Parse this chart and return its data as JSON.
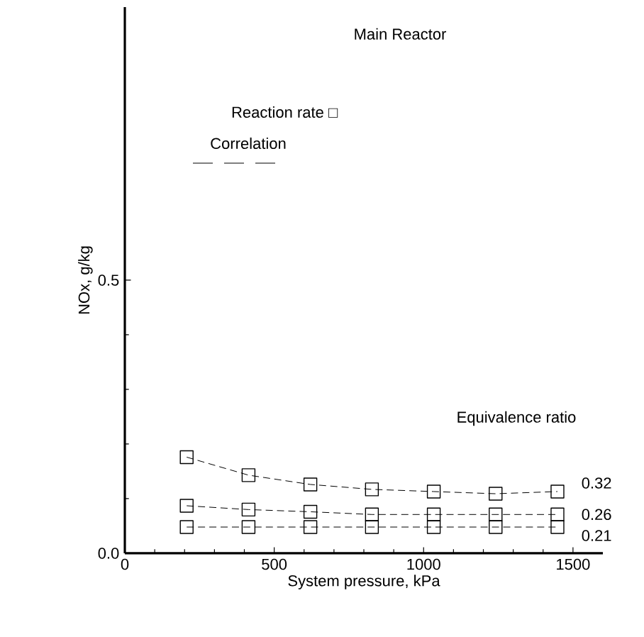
{
  "chart_data": {
    "type": "line",
    "title": "Main Reactor",
    "xlabel": "System pressure, kPa",
    "ylabel": "NOx, g/kg",
    "legend_title": "Equivalence ratio",
    "annotations": [
      "Reaction rate □",
      "Correlation"
    ],
    "x": [
      207,
      414,
      621,
      827,
      1034,
      1241,
      1448
    ],
    "series": [
      {
        "name": "0.32",
        "color": "#000000",
        "values": [
          0.176,
          0.143,
          0.126,
          0.117,
          0.113,
          0.109,
          0.113
        ]
      },
      {
        "name": "0.26",
        "color": "#000000",
        "values": [
          0.087,
          0.08,
          0.076,
          0.071,
          0.071,
          0.071,
          0.071
        ]
      },
      {
        "name": "0.21",
        "color": "#000000",
        "values": [
          0.048,
          0.048,
          0.048,
          0.048,
          0.048,
          0.048,
          0.048
        ]
      }
    ],
    "xlim": [
      0,
      1600
    ],
    "ylim": [
      0,
      1.0
    ],
    "xticks": [
      0,
      500,
      1000,
      1500
    ],
    "yticks": [
      {
        "value": 0,
        "label": "0.0"
      },
      {
        "value": 0.5,
        "label": "0.5"
      }
    ],
    "marker": "square",
    "line_style": "dashed"
  }
}
